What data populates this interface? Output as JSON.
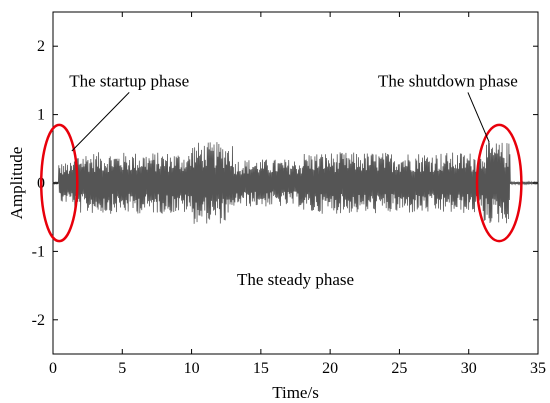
{
  "chart_data": {
    "type": "line",
    "xlabel": "Time/s",
    "ylabel": "Amplitude",
    "xlim": [
      0,
      35
    ],
    "ylim": [
      -2.5,
      2.5
    ],
    "x_ticks": [
      0,
      5,
      10,
      15,
      20,
      25,
      30,
      35
    ],
    "y_ticks": [
      -2,
      -1,
      0,
      1,
      2
    ],
    "grid": false,
    "series": [
      {
        "color": "#555555",
        "segments": [
          {
            "x_start": 0,
            "x_end": 0.4,
            "amplitude": 0.02
          },
          {
            "x_start": 0.4,
            "x_end": 1.5,
            "amplitude": 0.3
          },
          {
            "x_start": 1.5,
            "x_end": 10.0,
            "amplitude": 0.45
          },
          {
            "x_start": 10.0,
            "x_end": 13.0,
            "amplitude": 0.6
          },
          {
            "x_start": 13.0,
            "x_end": 18.0,
            "amplitude": 0.35
          },
          {
            "x_start": 18.0,
            "x_end": 31.0,
            "amplitude": 0.45
          },
          {
            "x_start": 31.0,
            "x_end": 33.0,
            "amplitude": 0.6
          },
          {
            "x_start": 33.0,
            "x_end": 35.0,
            "amplitude": 0.02
          }
        ]
      }
    ],
    "annotations": [
      {
        "text": "The startup  phase",
        "x": 5.5,
        "y": 1.5
      },
      {
        "text": "The shutdown phase",
        "x": 28.5,
        "y": 1.5
      },
      {
        "text": "The steady phase",
        "x": 17.5,
        "y": -1.4
      }
    ],
    "highlight_ellipses": [
      {
        "x_center": 0.45,
        "y_center": 0,
        "x_radius": 1.3,
        "y_radius": 0.85,
        "color": "#e8000b"
      },
      {
        "x_center": 32.2,
        "y_center": 0,
        "x_radius": 1.6,
        "y_radius": 0.85,
        "color": "#e8000b"
      }
    ]
  }
}
